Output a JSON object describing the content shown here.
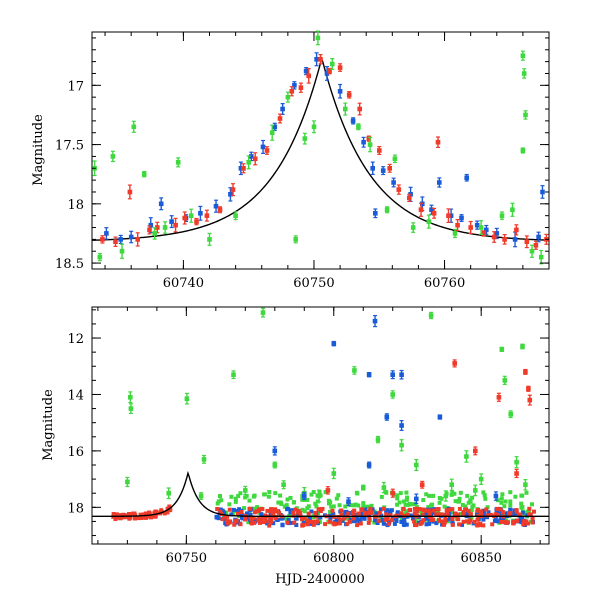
{
  "colors": {
    "blue": "#1a5bd8",
    "red": "#f03a2a",
    "green": "#3fd93f",
    "model": "#000000"
  },
  "chart_data": [
    {
      "type": "scatter",
      "title": "",
      "xlabel": "",
      "ylabel": "Magnitude",
      "xlim": [
        60733,
        60768
      ],
      "ylim": [
        18.55,
        16.55
      ],
      "y_inverted": true,
      "xticks": [
        60740,
        60750,
        60760
      ],
      "yticks": [
        17,
        17.5,
        18,
        18.5
      ],
      "grid": false,
      "model_curve": {
        "peak_x": 60750.6,
        "peak_mag": 16.77,
        "baseline_mag": 18.32,
        "width_days": 4.2
      },
      "series": [
        {
          "color": "blue",
          "points": [
            [
              60734.1,
              18.25
            ],
            [
              60735.2,
              18.3
            ],
            [
              60736.0,
              18.28
            ],
            [
              60737.5,
              18.18
            ],
            [
              60738.3,
              18.0
            ],
            [
              60739.1,
              18.15
            ],
            [
              60740.2,
              18.12
            ],
            [
              60741.3,
              18.08
            ],
            [
              60742.5,
              18.02
            ],
            [
              60743.6,
              17.92
            ],
            [
              60744.4,
              17.7
            ],
            [
              60745.2,
              17.6
            ],
            [
              60746.1,
              17.52
            ],
            [
              60747.0,
              17.35
            ],
            [
              60747.6,
              17.2
            ],
            [
              60748.5,
              17.0
            ],
            [
              60749.4,
              16.88
            ],
            [
              60750.2,
              16.78
            ],
            [
              60751.0,
              16.9
            ],
            [
              60752.0,
              17.05
            ],
            [
              60753.0,
              17.3
            ],
            [
              60753.8,
              17.48
            ],
            [
              60754.5,
              17.7
            ],
            [
              60754.7,
              18.08
            ],
            [
              60755.3,
              17.72
            ],
            [
              60756.1,
              17.82
            ],
            [
              60757.4,
              17.92
            ],
            [
              60758.3,
              18.0
            ],
            [
              60759.0,
              18.05
            ],
            [
              60759.6,
              17.82
            ],
            [
              60760.5,
              18.1
            ],
            [
              60761.3,
              18.12
            ],
            [
              60761.7,
              17.78
            ],
            [
              60762.5,
              18.18
            ],
            [
              60763.2,
              18.22
            ],
            [
              60764.0,
              18.25
            ],
            [
              60765.4,
              18.3
            ],
            [
              60767.2,
              18.28
            ],
            [
              60767.5,
              17.9
            ]
          ]
        },
        {
          "color": "red",
          "points": [
            [
              60733.8,
              18.3
            ],
            [
              60734.8,
              18.32
            ],
            [
              60735.9,
              17.9
            ],
            [
              60736.5,
              18.3
            ],
            [
              60737.4,
              18.22
            ],
            [
              60738.0,
              18.2
            ],
            [
              60739.4,
              18.18
            ],
            [
              60740.1,
              18.12
            ],
            [
              60741.0,
              18.15
            ],
            [
              60741.8,
              18.1
            ],
            [
              60742.8,
              18.05
            ],
            [
              60743.8,
              17.88
            ],
            [
              60744.6,
              17.7
            ],
            [
              60745.5,
              17.62
            ],
            [
              60746.4,
              17.55
            ],
            [
              60747.4,
              17.28
            ],
            [
              60748.3,
              17.05
            ],
            [
              60749.0,
              17.02
            ],
            [
              60749.6,
              16.92
            ],
            [
              60750.5,
              16.78
            ],
            [
              60751.2,
              16.88
            ],
            [
              60752.0,
              16.85
            ],
            [
              60752.7,
              17.08
            ],
            [
              60753.5,
              17.2
            ],
            [
              60754.2,
              17.45
            ],
            [
              60755.0,
              17.55
            ],
            [
              60755.8,
              17.7
            ],
            [
              60756.5,
              17.88
            ],
            [
              60757.3,
              17.95
            ],
            [
              60758.2,
              18.05
            ],
            [
              60759.2,
              18.08
            ],
            [
              60759.5,
              17.48
            ],
            [
              60760.3,
              18.1
            ],
            [
              60761.0,
              18.18
            ],
            [
              60762.0,
              18.2
            ],
            [
              60763.0,
              18.25
            ],
            [
              60763.8,
              18.28
            ],
            [
              60764.6,
              18.3
            ],
            [
              60765.5,
              18.22
            ],
            [
              60766.3,
              18.32
            ],
            [
              60767.0,
              18.35
            ],
            [
              60767.8,
              18.3
            ]
          ]
        },
        {
          "color": "green",
          "points": [
            [
              60733.2,
              17.7
            ],
            [
              60733.6,
              18.45
            ],
            [
              60734.6,
              17.6
            ],
            [
              60735.3,
              18.4
            ],
            [
              60736.2,
              17.35
            ],
            [
              60737.0,
              17.75
            ],
            [
              60737.8,
              18.25
            ],
            [
              60738.6,
              18.2
            ],
            [
              60739.6,
              17.65
            ],
            [
              60740.6,
              18.1
            ],
            [
              60742.0,
              18.3
            ],
            [
              60744.0,
              18.1
            ],
            [
              60745.0,
              17.65
            ],
            [
              60746.8,
              17.4
            ],
            [
              60748.0,
              17.1
            ],
            [
              60748.6,
              18.3
            ],
            [
              60749.3,
              17.45
            ],
            [
              60750.0,
              17.35
            ],
            [
              60750.3,
              16.6
            ],
            [
              60751.4,
              16.82
            ],
            [
              60752.4,
              17.2
            ],
            [
              60753.4,
              17.35
            ],
            [
              60754.3,
              17.5
            ],
            [
              60755.6,
              18.05
            ],
            [
              60756.2,
              17.62
            ],
            [
              60757.6,
              18.2
            ],
            [
              60758.8,
              18.15
            ],
            [
              60760.8,
              18.25
            ],
            [
              60762.8,
              18.2
            ],
            [
              60764.4,
              18.1
            ],
            [
              60765.2,
              18.05
            ],
            [
              60766.0,
              16.75
            ],
            [
              60766.1,
              16.9
            ],
            [
              60766.0,
              17.55
            ],
            [
              60766.2,
              17.25
            ],
            [
              60766.7,
              18.4
            ],
            [
              60767.4,
              18.45
            ]
          ]
        }
      ]
    },
    {
      "type": "scatter",
      "title": "",
      "xlabel": "HJD-2400000",
      "ylabel": "Magnitude",
      "xlim": [
        60718,
        60873
      ],
      "ylim": [
        19.3,
        10.9
      ],
      "y_inverted": true,
      "xticks": [
        60750,
        60800,
        60850
      ],
      "yticks": [
        12,
        14,
        16,
        18
      ],
      "grid": false,
      "model_curve": {
        "peak_x": 60750.6,
        "peak_mag": 16.77,
        "baseline_mag": 18.32,
        "width_days": 4.2
      },
      "series": [
        {
          "color": "green",
          "points": [
            [
              60731.0,
              14.1
            ],
            [
              60731.2,
              14.5
            ],
            [
              60730.0,
              17.1
            ],
            [
              60744.0,
              17.5
            ],
            [
              60750.2,
              14.15
            ],
            [
              60756.0,
              16.3
            ],
            [
              60766.0,
              13.3
            ],
            [
              60776.0,
              11.1
            ],
            [
              60780.0,
              16.5
            ],
            [
              60783.0,
              17.2
            ],
            [
              60790.0,
              17.5
            ],
            [
              60800.0,
              16.8
            ],
            [
              60807.0,
              13.15
            ],
            [
              60810.0,
              17.3
            ],
            [
              60815.0,
              15.6
            ],
            [
              60820.0,
              14.0
            ],
            [
              60823.0,
              15.8
            ],
            [
              60828.0,
              16.5
            ],
            [
              60833.0,
              11.2
            ],
            [
              60840.0,
              17.2
            ],
            [
              60845.0,
              16.2
            ],
            [
              60850.0,
              17.0
            ],
            [
              60857.0,
              12.4
            ],
            [
              60858.0,
              13.5
            ],
            [
              60860.0,
              14.7
            ],
            [
              60862.0,
              16.4
            ],
            [
              60864.0,
              12.3
            ],
            [
              60865.0,
              17.2
            ],
            [
              60755.0,
              17.6
            ],
            [
              60770.0,
              17.4
            ],
            [
              60795.0,
              17.6
            ],
            [
              60817.0,
              17.3
            ],
            [
              60838.0,
              17.6
            ],
            [
              60848.0,
              17.4
            ]
          ]
        },
        {
          "color": "blue",
          "points": [
            [
              60780.0,
              16.0
            ],
            [
              60800.0,
              12.2
            ],
            [
              60812.0,
              13.3
            ],
            [
              60814.0,
              11.4
            ],
            [
              60818.0,
              14.8
            ],
            [
              60820.0,
              13.3
            ],
            [
              60823.0,
              13.3
            ],
            [
              60836.0,
              14.8
            ],
            [
              60823.0,
              15.1
            ],
            [
              60790.0,
              17.6
            ],
            [
              60805.0,
              17.8
            ],
            [
              60812.0,
              16.5
            ],
            [
              60828.0,
              17.7
            ],
            [
              60855.0,
              17.6
            ]
          ]
        },
        {
          "color": "red",
          "points": [
            [
              60841.0,
              12.9
            ],
            [
              60856.0,
              14.1
            ],
            [
              60865.0,
              13.2
            ],
            [
              60866.0,
              13.8
            ],
            [
              60866.5,
              14.2
            ],
            [
              60848.0,
              16.0
            ],
            [
              60862.0,
              16.8
            ],
            [
              60798.0,
              17.4
            ],
            [
              60820.0,
              17.5
            ],
            [
              60830.0,
              17.2
            ]
          ]
        }
      ],
      "baseline_band": {
        "x_from": 60760,
        "x_to": 60868,
        "mag": 18.35,
        "scatter": 0.25
      }
    }
  ]
}
